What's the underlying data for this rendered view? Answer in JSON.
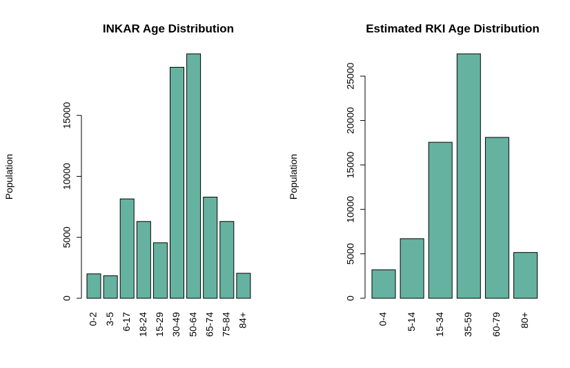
{
  "chart_data": [
    {
      "type": "bar",
      "title": "INKAR Age Distribution",
      "ylabel": "Population",
      "categories": [
        "0-2",
        "3-5",
        "6-17",
        "18-24",
        "15-29",
        "30-49",
        "50-64",
        "65-74",
        "75-84",
        "84+"
      ],
      "values": [
        2000,
        1850,
        8150,
        6300,
        4550,
        18950,
        20050,
        8300,
        6300,
        2050
      ],
      "yticks": [
        0,
        5000,
        10000,
        15000
      ],
      "ylim": [
        0,
        20050
      ],
      "bar_color": "#66b2a0"
    },
    {
      "type": "bar",
      "title": "Estimated RKI Age Distribution",
      "ylabel": "Population",
      "categories": [
        "0-4",
        "5-14",
        "15-34",
        "35-59",
        "60-79",
        "80+"
      ],
      "values": [
        3200,
        6700,
        17550,
        27500,
        18100,
        5150
      ],
      "yticks": [
        0,
        5000,
        10000,
        15000,
        20000,
        25000
      ],
      "ylim": [
        0,
        27500
      ],
      "bar_color": "#66b2a0"
    }
  ]
}
